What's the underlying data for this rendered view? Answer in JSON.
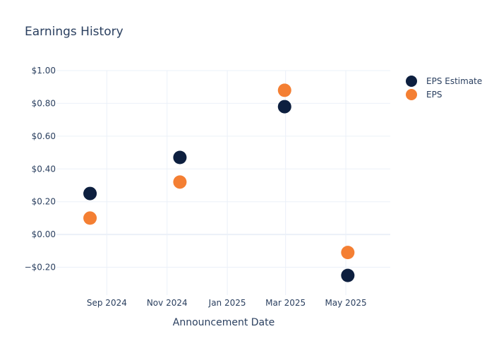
{
  "chart_data": {
    "type": "scatter",
    "title": "Earnings History",
    "xlabel": "Announcement Date",
    "ylabel": "",
    "x_axis_type": "date",
    "xlim": [
      "2024-07-12",
      "2025-06-15"
    ],
    "ylim": [
      -0.37,
      1.0
    ],
    "y_ticks": [
      1.0,
      0.8,
      0.6,
      0.4,
      0.2,
      0.0,
      -0.2
    ],
    "y_tick_labels": [
      "$1.00",
      "$0.80",
      "$0.60",
      "$0.40",
      "$0.20",
      "$0.00",
      "−$0.20"
    ],
    "x_ticks": [
      "2024-09-01",
      "2024-11-01",
      "2025-01-01",
      "2025-03-01",
      "2025-05-01"
    ],
    "x_tick_labels": [
      "Sep 2024",
      "Nov 2024",
      "Jan 2025",
      "Mar 2025",
      "May 2025"
    ],
    "grid": true,
    "legend_position": "top-right",
    "series": [
      {
        "name": "EPS Estimate",
        "color": "#0d1f3f",
        "points": [
          {
            "x": "2024-08-15",
            "y": 0.25
          },
          {
            "x": "2024-11-14",
            "y": 0.47
          },
          {
            "x": "2025-02-28",
            "y": 0.78
          },
          {
            "x": "2025-05-03",
            "y": -0.25
          }
        ]
      },
      {
        "name": "EPS",
        "color": "#f47f33",
        "points": [
          {
            "x": "2024-08-15",
            "y": 0.1
          },
          {
            "x": "2024-11-14",
            "y": 0.32
          },
          {
            "x": "2025-02-28",
            "y": 0.88
          },
          {
            "x": "2025-05-03",
            "y": -0.11
          }
        ]
      }
    ]
  }
}
